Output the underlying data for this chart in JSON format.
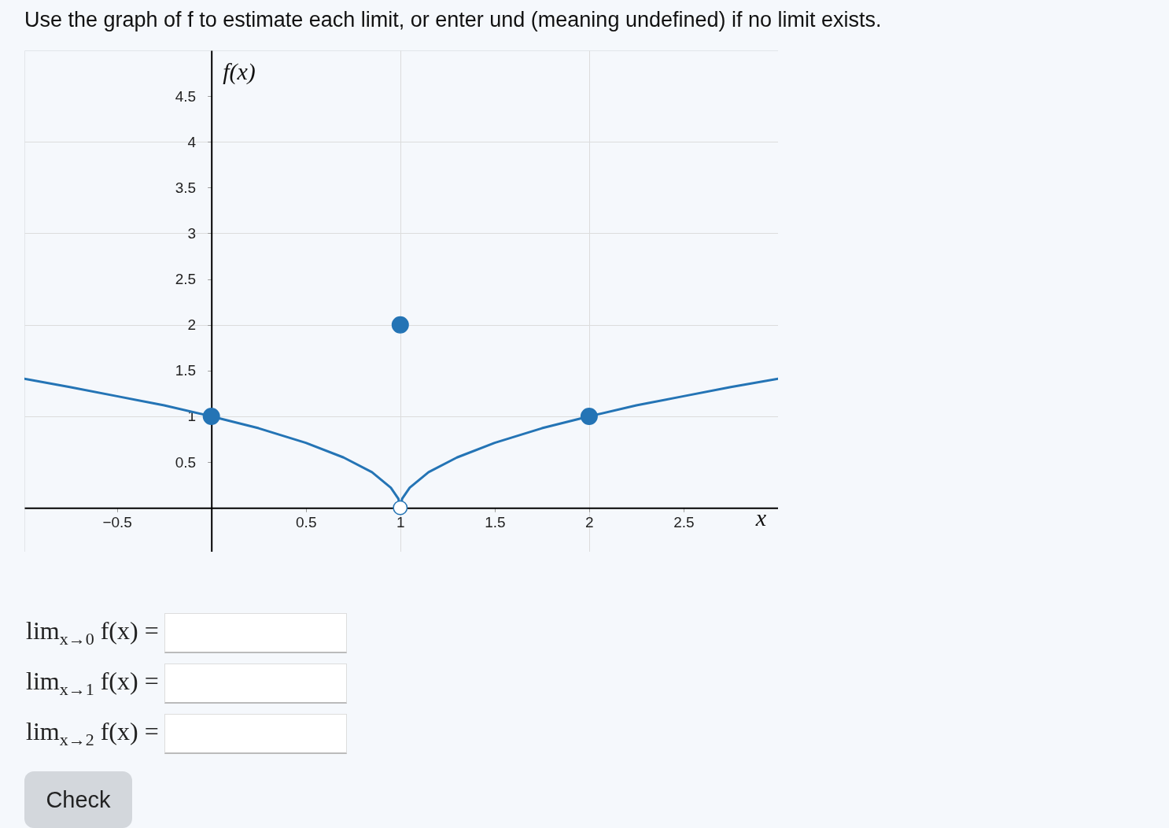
{
  "chart_data": {
    "type": "line",
    "title": "Use the graph of f to estimate each limit, or enter und (meaning undefined) if no limit exists.",
    "xlabel": "x",
    "ylabel": "f(x)",
    "xlim": [
      -0.99,
      3
    ],
    "ylim": [
      -0.48,
      5
    ],
    "xticks": [
      -0.5,
      0.5,
      1,
      1.5,
      2,
      2.5
    ],
    "yticks": [
      0.5,
      1,
      1.5,
      2,
      2.5,
      3,
      3.5,
      4,
      4.5
    ],
    "grid": true,
    "legend": false,
    "series": [
      {
        "color": "#2474b5",
        "x": [
          -0.99,
          -0.75,
          -0.5,
          -0.25,
          0,
          0.25,
          0.5,
          0.7,
          0.85,
          0.95,
          0.99,
          1,
          1.01,
          1.05,
          1.15,
          1.3,
          1.5,
          1.75,
          2,
          2.25,
          2.5,
          2.75,
          3
        ],
        "values": [
          1.41,
          1.32,
          1.22,
          1.12,
          1,
          0.87,
          0.71,
          0.55,
          0.39,
          0.22,
          0.1,
          0,
          0.1,
          0.22,
          0.39,
          0.55,
          0.71,
          0.87,
          1,
          1.12,
          1.22,
          1.32,
          1.41
        ]
      },
      {
        "type": "scatter",
        "marker": "circle",
        "color": "#2474b5",
        "x": [
          0,
          1,
          2
        ],
        "values": [
          1,
          2,
          1
        ]
      },
      {
        "type": "scatter",
        "marker": "circle",
        "color": "#ffffff",
        "x": [
          1
        ],
        "values": [
          0
        ]
      }
    ],
    "annotations": [
      "lim$_{x→0}$ f(x) =",
      "lim$_{x→1}$ f(x) =",
      "lim$_{x→2}$ f(x) =",
      "Check"
    ]
  }
}
